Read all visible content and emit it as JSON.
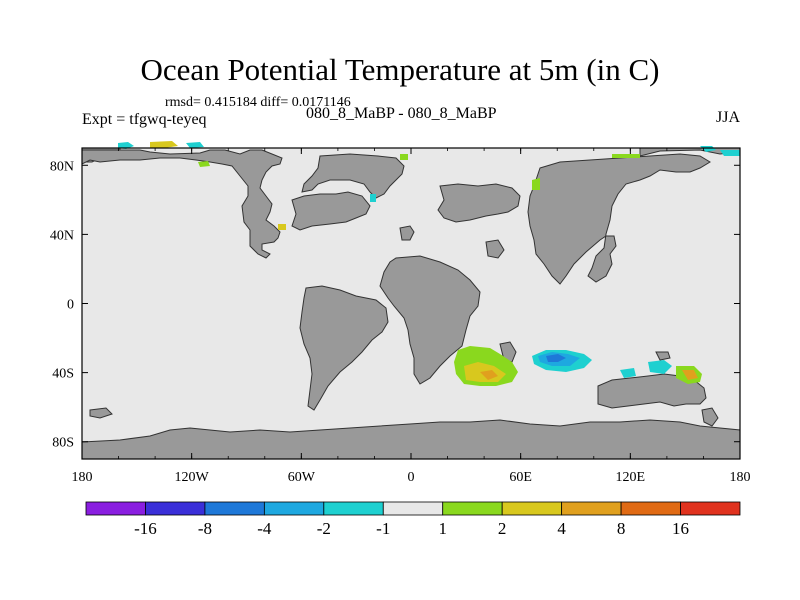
{
  "title": "Ocean Potential Temperature at 5m (in C)",
  "stats_line": "rmsd= 0.415184 diff= 0.0171146",
  "experiment_label": "Expt = tfgwq-teyeq",
  "subtitle": "080_8_MaBP - 080_8_MaBP",
  "season": "JJA",
  "axes": {
    "lon_labels": [
      "180",
      "120W",
      "60W",
      "0",
      "60E",
      "120E",
      "180"
    ],
    "lat_labels": [
      "80N",
      "40N",
      "0",
      "40S",
      "80S"
    ]
  },
  "colorbar": {
    "colors": [
      "#8a1ee0",
      "#3a2fd8",
      "#1e78d8",
      "#1ea8e0",
      "#1ed0d0",
      "#e8e8e8",
      "#8ad81e",
      "#d8c81e",
      "#e0a01e",
      "#e06a14",
      "#e0321e"
    ],
    "labels": [
      "-16",
      "-8",
      "-4",
      "-2",
      "-1",
      "1",
      "2",
      "4",
      "8",
      "16"
    ]
  },
  "colors": {
    "ocean": "#e8e8e8",
    "land": "#999999"
  }
}
